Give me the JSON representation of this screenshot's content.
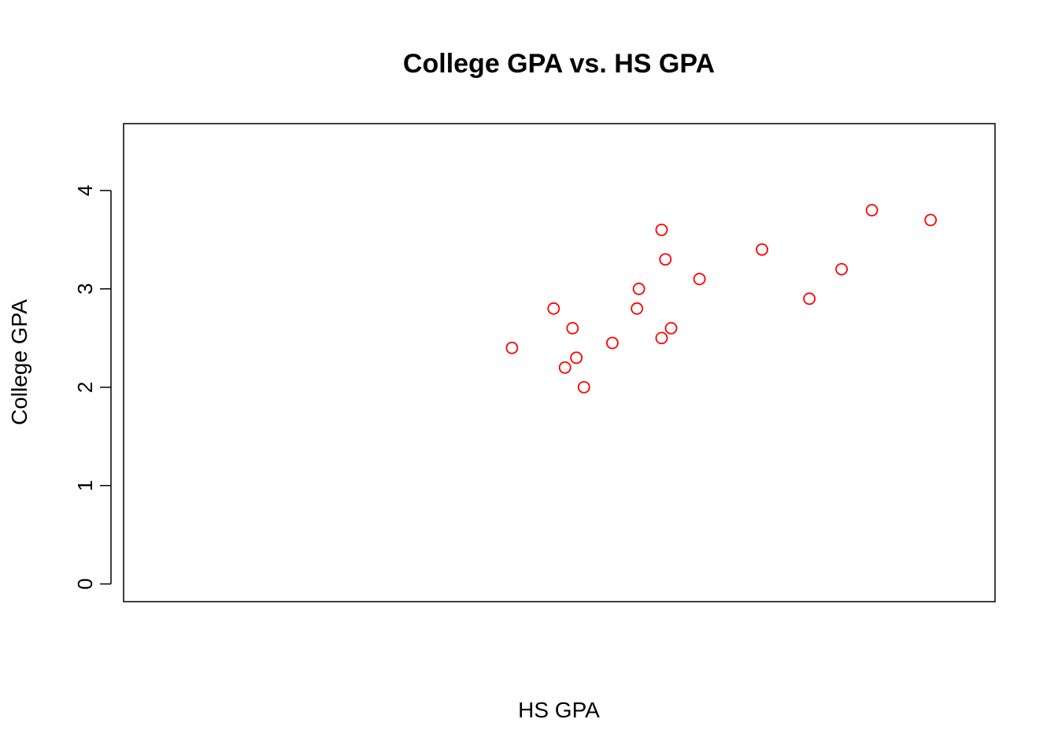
{
  "chart_data": {
    "type": "scatter",
    "title": "College GPA vs. HS GPA",
    "xlabel": "HS GPA",
    "ylabel": "College GPA",
    "xlim": [
      0,
      4.6
    ],
    "ylim": [
      -0.18,
      4.68
    ],
    "x_axis_ticks_shown": false,
    "y_ticks": [
      0,
      1,
      2,
      3,
      4
    ],
    "y_tick_labels": [
      "0",
      "1",
      "2",
      "3",
      "4"
    ],
    "grid": false,
    "legend": "none",
    "point_color": "#ff0000",
    "marker": "open-circle",
    "points": [
      {
        "x": 2.05,
        "y": 2.4
      },
      {
        "x": 2.27,
        "y": 2.8
      },
      {
        "x": 2.33,
        "y": 2.2
      },
      {
        "x": 2.37,
        "y": 2.6
      },
      {
        "x": 2.39,
        "y": 2.3
      },
      {
        "x": 2.43,
        "y": 2.0
      },
      {
        "x": 2.58,
        "y": 2.45
      },
      {
        "x": 2.71,
        "y": 2.8
      },
      {
        "x": 2.72,
        "y": 3.0
      },
      {
        "x": 2.84,
        "y": 3.6
      },
      {
        "x": 2.84,
        "y": 2.5
      },
      {
        "x": 2.86,
        "y": 3.3
      },
      {
        "x": 2.89,
        "y": 2.6
      },
      {
        "x": 3.04,
        "y": 3.1
      },
      {
        "x": 3.37,
        "y": 3.4
      },
      {
        "x": 3.62,
        "y": 2.9
      },
      {
        "x": 3.79,
        "y": 3.2
      },
      {
        "x": 3.95,
        "y": 3.8
      },
      {
        "x": 4.26,
        "y": 3.7
      }
    ]
  }
}
